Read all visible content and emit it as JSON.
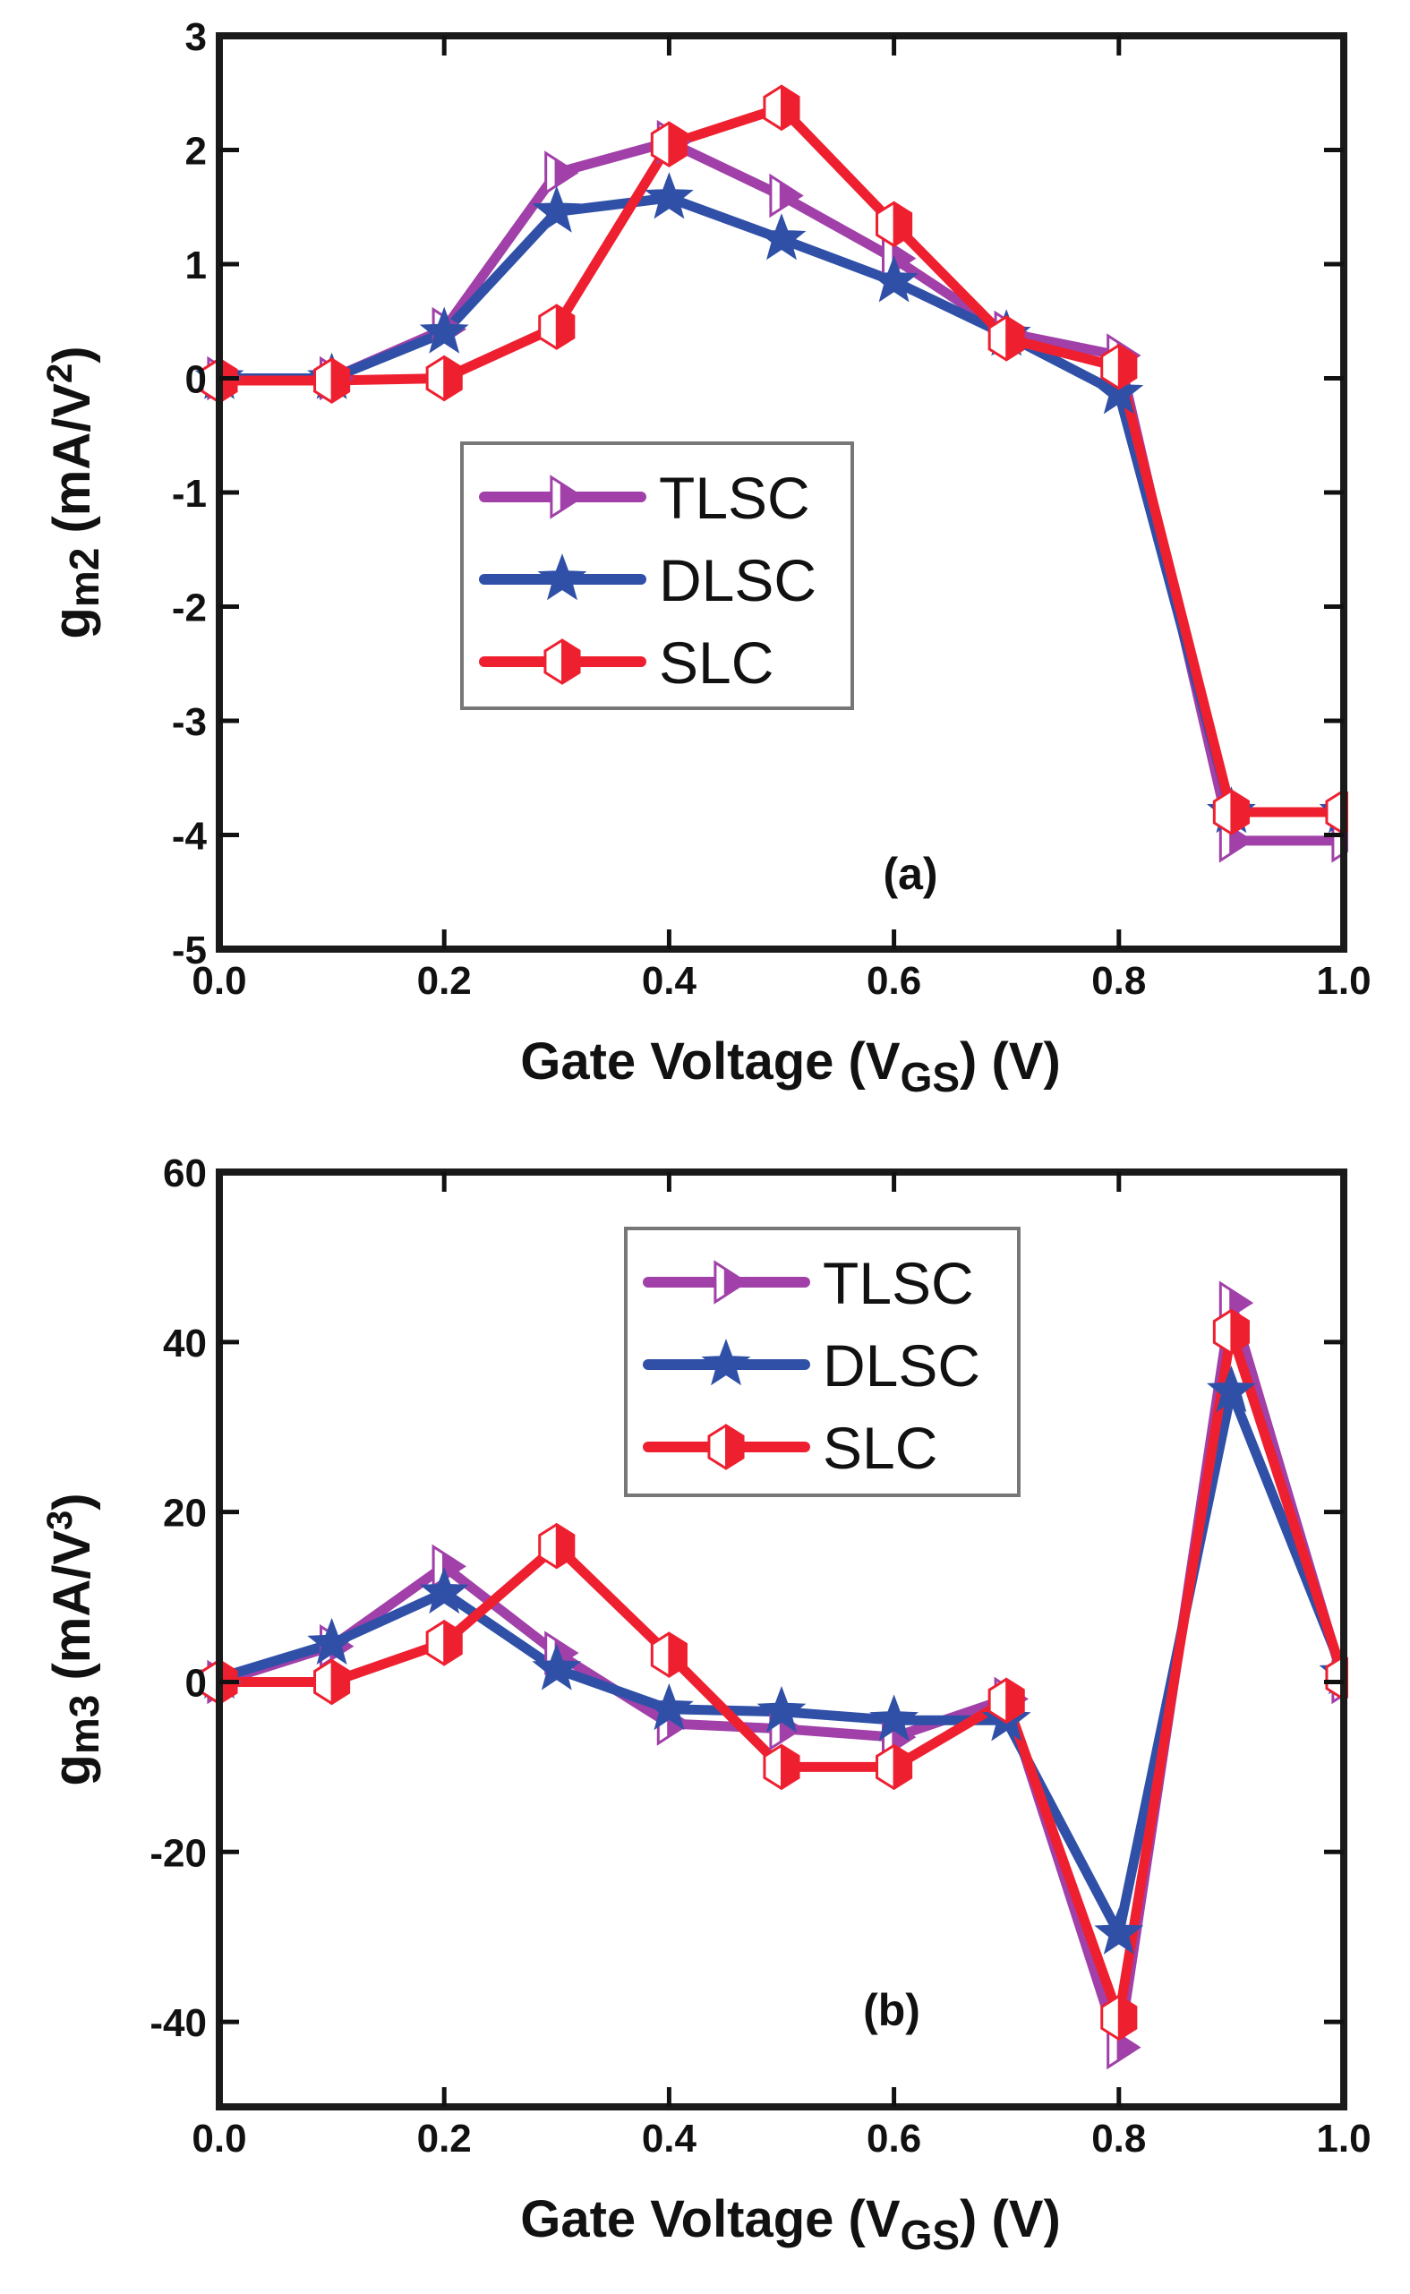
{
  "chart_data": [
    {
      "type": "line",
      "panel_label": "(a)",
      "title": "",
      "xlabel": "Gate Voltage (V",
      "xlabel_sub": "GS",
      "xlabel_tail": ") (V)",
      "ylabel": "g",
      "ylabel_sub": "m2",
      "ylabel_tail": " (mA/V",
      "ylabel_sup": "2",
      "ylabel_end": ")",
      "xlim": [
        0.0,
        1.0
      ],
      "ylim": [
        -5,
        3
      ],
      "xticks": [
        "0.0",
        "0.2",
        "0.4",
        "0.6",
        "0.8",
        "1.0"
      ],
      "xtick_values": [
        0.0,
        0.2,
        0.4,
        0.6,
        0.8,
        1.0
      ],
      "yticks": [
        "3",
        "2",
        "1",
        "0",
        "-1",
        "-2",
        "-3",
        "-4",
        "-5"
      ],
      "ytick_values": [
        3,
        2,
        1,
        0,
        -1,
        -2,
        -3,
        -4,
        -5
      ],
      "grid": false,
      "legend_position": "center-left",
      "x": [
        0.0,
        0.1,
        0.2,
        0.3,
        0.4,
        0.5,
        0.6,
        0.7,
        0.8,
        0.9,
        1.0
      ],
      "series": [
        {
          "name": "TLSC",
          "color": "#A040A8",
          "marker": "triangle-right",
          "values": [
            0.0,
            0.0,
            0.43,
            1.8,
            2.07,
            1.6,
            1.05,
            0.4,
            0.2,
            -4.05,
            -4.05
          ]
        },
        {
          "name": "DLSC",
          "color": "#3050A8",
          "marker": "star",
          "values": [
            0.0,
            0.0,
            0.4,
            1.46,
            1.58,
            1.22,
            0.85,
            0.38,
            -0.13,
            -3.8,
            -3.8
          ]
        },
        {
          "name": "SLC",
          "color": "#EE2030",
          "marker": "hexagon",
          "values": [
            -0.02,
            -0.02,
            0.0,
            0.45,
            2.05,
            2.37,
            1.35,
            0.35,
            0.1,
            -3.8,
            -3.8
          ]
        }
      ]
    },
    {
      "type": "line",
      "panel_label": "(b)",
      "title": "",
      "xlabel": "Gate Voltage (V",
      "xlabel_sub": "GS",
      "xlabel_tail": ") (V)",
      "ylabel": "g",
      "ylabel_sub": "m3",
      "ylabel_tail": " (mA/V",
      "ylabel_sup": "3",
      "ylabel_end": ")",
      "xlim": [
        0.0,
        1.0
      ],
      "ylim": [
        -50,
        60
      ],
      "xticks": [
        "0.0",
        "0.2",
        "0.4",
        "0.6",
        "0.8",
        "1.0"
      ],
      "xtick_values": [
        0.0,
        0.2,
        0.4,
        0.6,
        0.8,
        1.0
      ],
      "yticks": [
        "60",
        "40",
        "20",
        "0",
        "-20",
        "-40"
      ],
      "ytick_values": [
        60,
        40,
        20,
        0,
        -20,
        -40
      ],
      "grid": false,
      "legend_position": "top-center",
      "x": [
        0.0,
        0.1,
        0.2,
        0.3,
        0.4,
        0.5,
        0.6,
        0.7,
        0.8,
        0.9,
        1.0
      ],
      "series": [
        {
          "name": "TLSC",
          "color": "#A040A8",
          "marker": "triangle-right",
          "values": [
            0.0,
            4.2,
            13.6,
            3.4,
            -4.9,
            -5.5,
            -6.5,
            -2.0,
            -43.0,
            44.6,
            0.0
          ]
        },
        {
          "name": "DLSC",
          "color": "#3050A8",
          "marker": "star",
          "values": [
            0.5,
            4.5,
            10.5,
            1.5,
            -3.2,
            -3.5,
            -4.5,
            -4.5,
            -29.6,
            34.2,
            1.0
          ]
        },
        {
          "name": "SLC",
          "color": "#EE2030",
          "marker": "hexagon",
          "values": [
            0.0,
            0.0,
            4.6,
            16.0,
            3.2,
            -10.0,
            -10.0,
            -2.2,
            -39.5,
            41.2,
            0.5
          ]
        }
      ]
    }
  ]
}
